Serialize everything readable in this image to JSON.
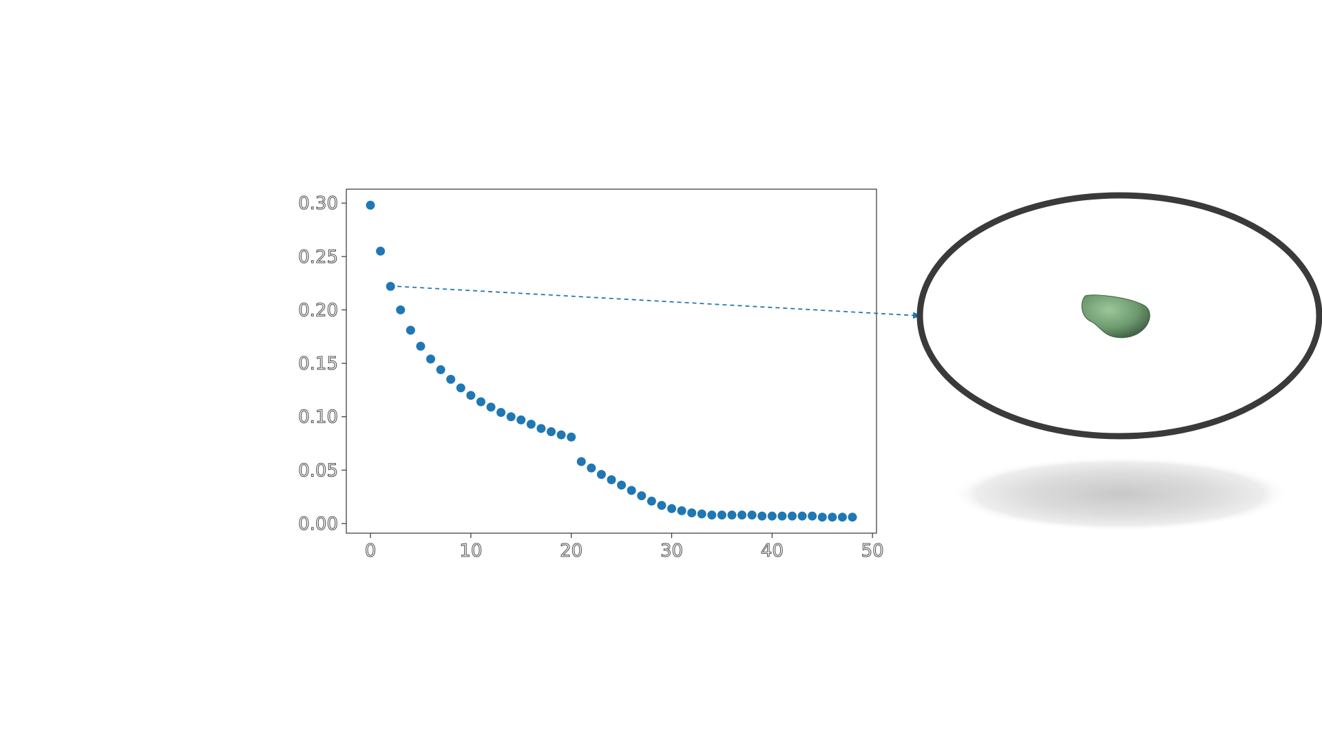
{
  "chart_data": {
    "type": "scatter",
    "title": "",
    "xlabel": "",
    "ylabel": "",
    "xlim": [
      -2.4,
      50.4
    ],
    "ylim": [
      -0.009,
      0.313
    ],
    "xticks": [
      "0",
      "10",
      "20",
      "30",
      "40",
      "50"
    ],
    "yticks": [
      "0.00",
      "0.05",
      "0.10",
      "0.15",
      "0.20",
      "0.25",
      "0.30"
    ],
    "grid": false,
    "legend": "none",
    "x": [
      0,
      1,
      2,
      3,
      4,
      5,
      6,
      7,
      8,
      9,
      10,
      11,
      12,
      13,
      14,
      15,
      16,
      17,
      18,
      19,
      20,
      21,
      22,
      23,
      24,
      25,
      26,
      27,
      28,
      29,
      30,
      31,
      32,
      33,
      34,
      35,
      36,
      37,
      38,
      39,
      40,
      41,
      42,
      43,
      44,
      45,
      46,
      47,
      48
    ],
    "series": [
      {
        "values": [
          0.298,
          0.255,
          0.222,
          0.2,
          0.181,
          0.166,
          0.154,
          0.144,
          0.135,
          0.127,
          0.12,
          0.114,
          0.109,
          0.104,
          0.1,
          0.097,
          0.093,
          0.089,
          0.086,
          0.083,
          0.081,
          0.058,
          0.052,
          0.046,
          0.041,
          0.036,
          0.031,
          0.026,
          0.021,
          0.017,
          0.014,
          0.012,
          0.01,
          0.009,
          0.008,
          0.008,
          0.008,
          0.008,
          0.008,
          0.007,
          0.007,
          0.007,
          0.007,
          0.007,
          0.007,
          0.006,
          0.006,
          0.006,
          0.006
        ],
        "color": "#1f77b4"
      }
    ],
    "annotation": {
      "type": "dashed-arrow",
      "from_point_index": 2,
      "color": "#1f77b4"
    }
  },
  "inset": {
    "shape": "blob",
    "blob_color": "#6e9a70",
    "frame_color": "#3a3a3a",
    "shadow_color": "#cccccc"
  }
}
